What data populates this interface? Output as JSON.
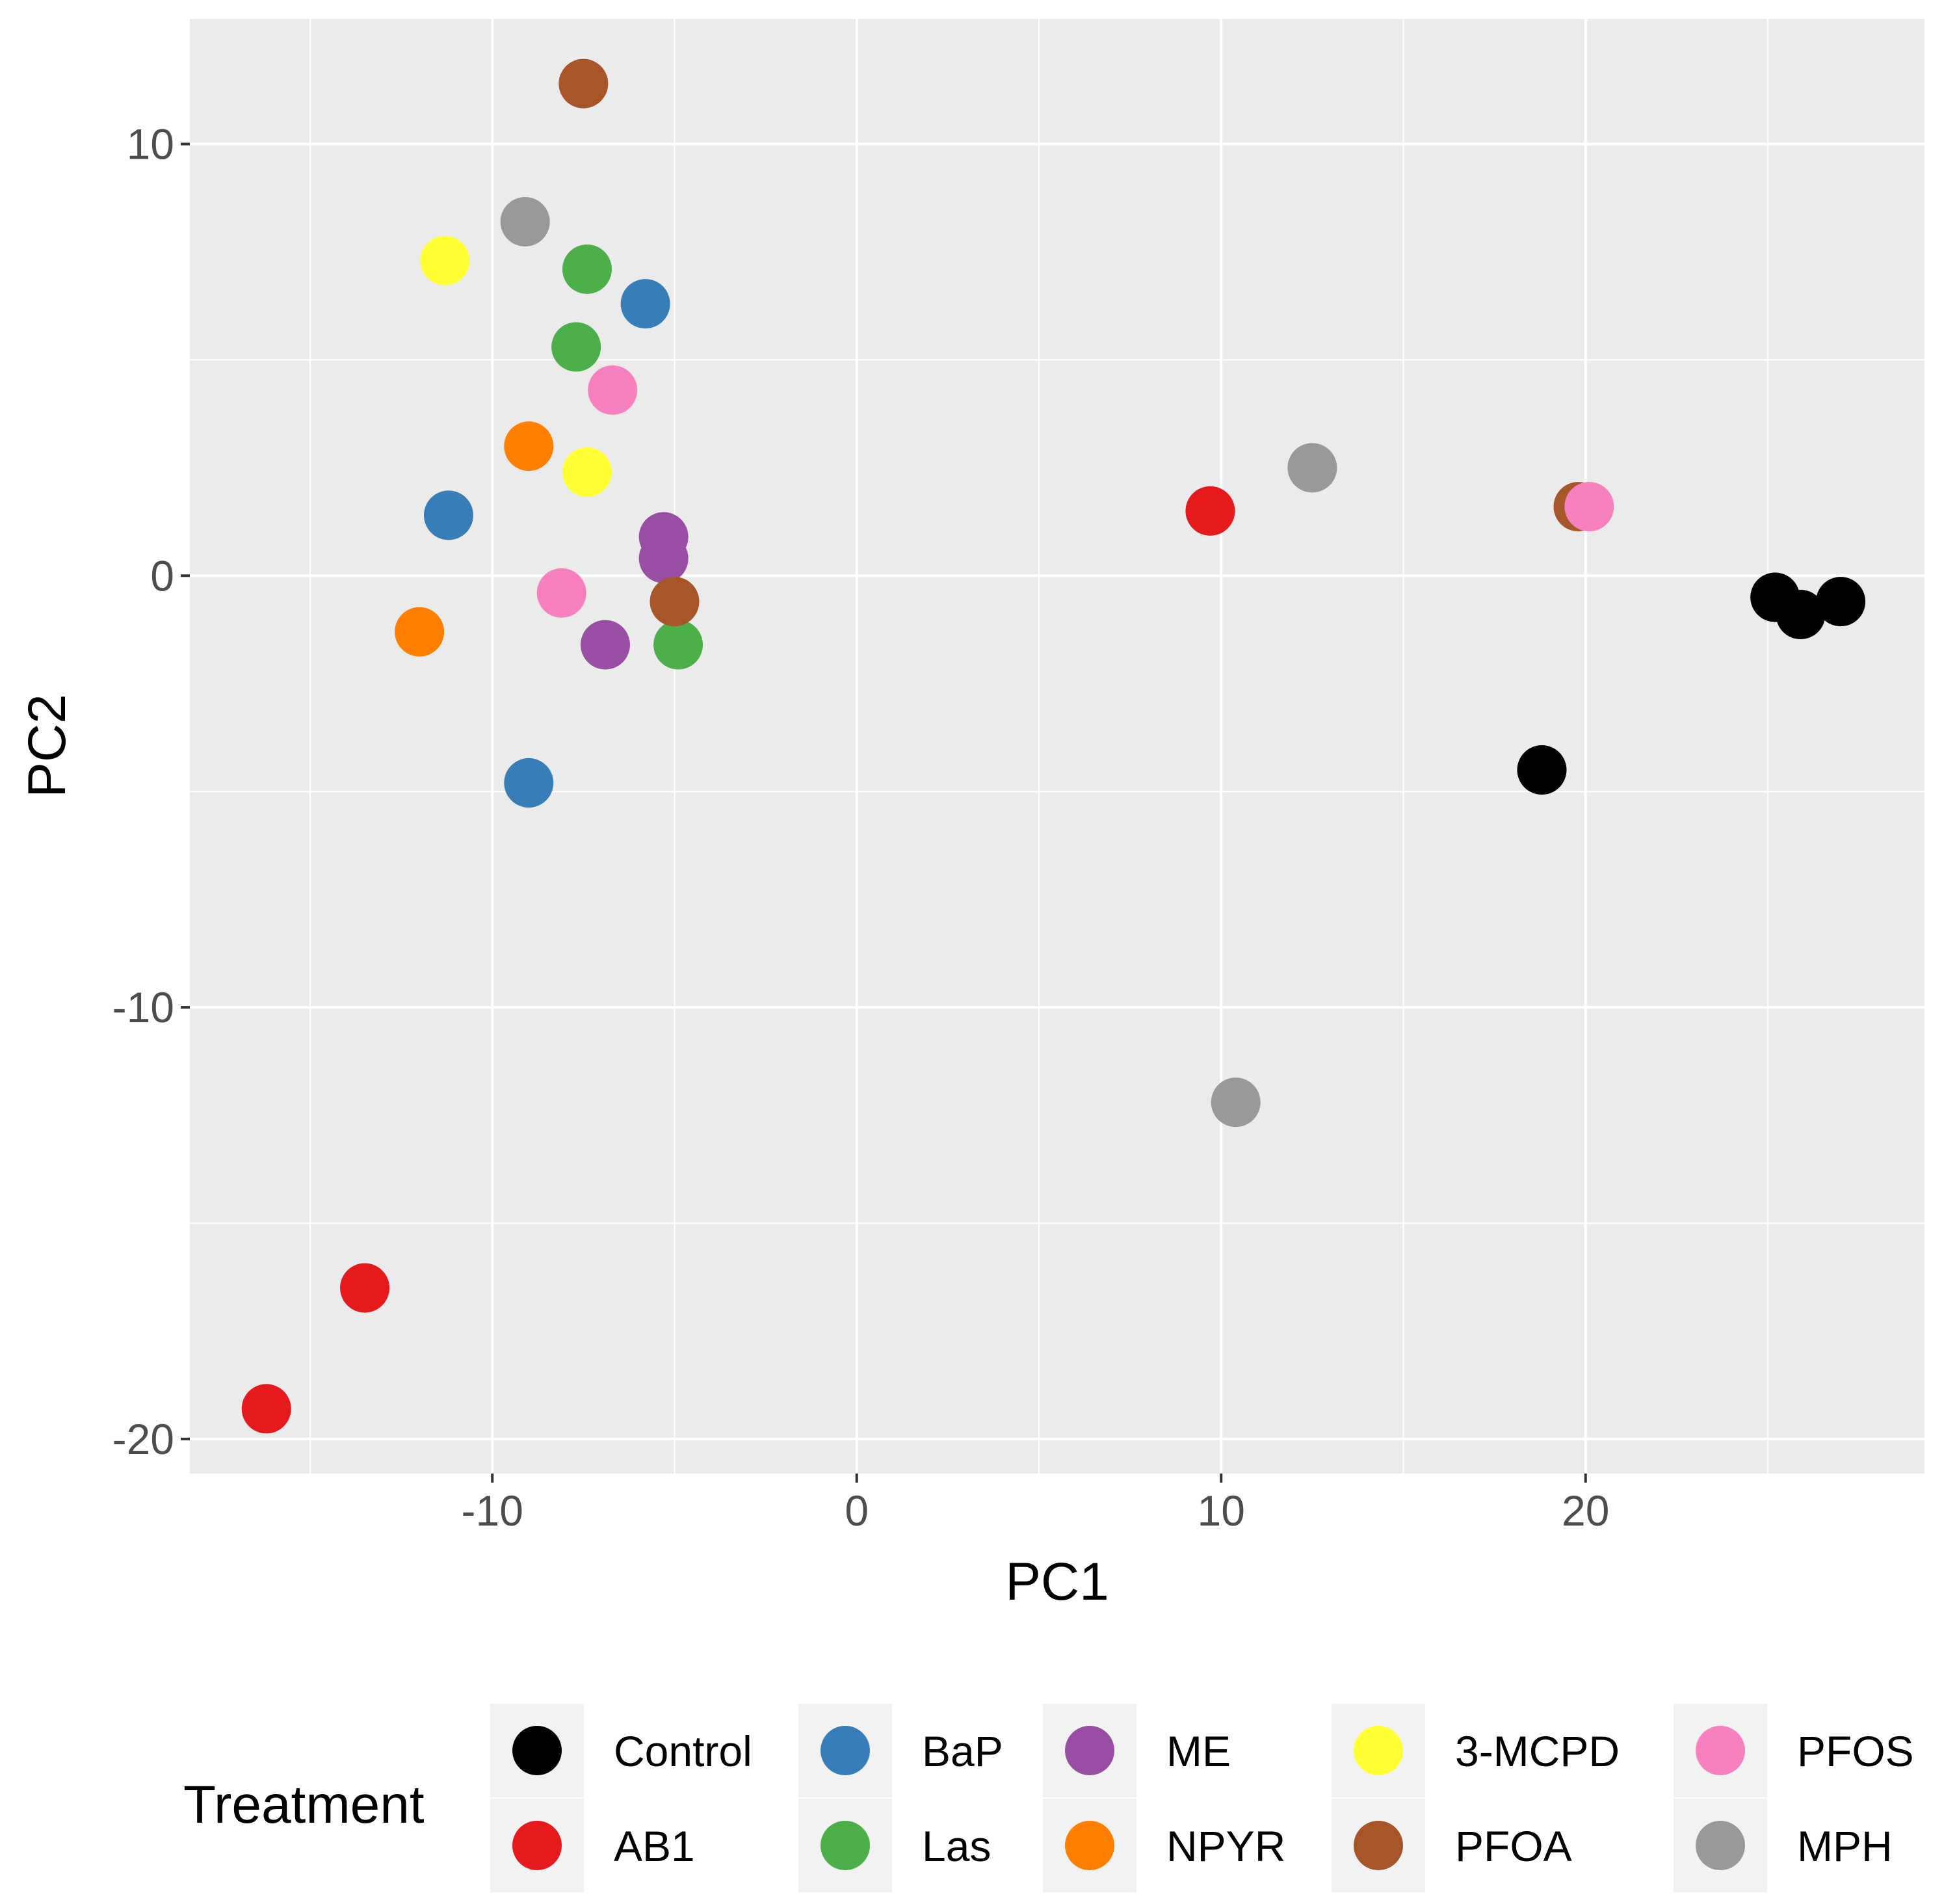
{
  "chart_data": {
    "type": "scatter",
    "title": "",
    "xlabel": "PC1",
    "ylabel": "PC2",
    "xlim": [
      -18.3,
      29.3
    ],
    "ylim": [
      -20.8,
      12.9
    ],
    "grid": true,
    "x_ticks": [
      -10,
      0,
      10,
      20
    ],
    "y_ticks": [
      10,
      0,
      -10,
      -20
    ],
    "x_tick_labels": [
      "-10",
      "0",
      "10",
      "20"
    ],
    "y_tick_labels": [
      "10",
      "0",
      "-10",
      "-20"
    ],
    "legend": {
      "title": "Treatment",
      "placement": "bottom",
      "entries": [
        {
          "label": "Control",
          "color": "#000000"
        },
        {
          "label": "AB1",
          "color": "#e41a1c"
        },
        {
          "label": "BaP",
          "color": "#377eb8"
        },
        {
          "label": "Las",
          "color": "#4daf4a"
        },
        {
          "label": "ME",
          "color": "#984ea3"
        },
        {
          "label": "NPYR",
          "color": "#ff7f00"
        },
        {
          "label": "3-MCPD",
          "color": "#ffff33"
        },
        {
          "label": "PFOA",
          "color": "#a65628"
        },
        {
          "label": "PFOS",
          "color": "#f781bf"
        },
        {
          "label": "MPH",
          "color": "#999999"
        }
      ]
    },
    "series": [
      {
        "name": "Control",
        "color": "#000000",
        "points": [
          [
            18.8,
            -4.5
          ],
          [
            25.2,
            -0.5
          ],
          [
            25.9,
            -0.9
          ],
          [
            27.0,
            -0.6
          ]
        ]
      },
      {
        "name": "AB1",
        "color": "#e41a1c",
        "points": [
          [
            9.7,
            1.5
          ],
          [
            -13.5,
            -16.5
          ],
          [
            -16.2,
            -19.3
          ]
        ]
      },
      {
        "name": "BaP",
        "color": "#377eb8",
        "points": [
          [
            -5.8,
            6.3
          ],
          [
            -11.2,
            1.4
          ],
          [
            -9.0,
            -4.8
          ]
        ]
      },
      {
        "name": "Las",
        "color": "#4daf4a",
        "points": [
          [
            -7.4,
            7.1
          ],
          [
            -7.7,
            5.3
          ],
          [
            -4.9,
            -1.6
          ]
        ]
      },
      {
        "name": "ME",
        "color": "#984ea3",
        "points": [
          [
            -5.3,
            0.9
          ],
          [
            -5.3,
            0.4
          ],
          [
            -6.9,
            -1.6
          ]
        ]
      },
      {
        "name": "NPYR",
        "color": "#ff7f00",
        "points": [
          [
            -9.0,
            3.0
          ],
          [
            -12.0,
            -1.3
          ]
        ]
      },
      {
        "name": "3-MCPD",
        "color": "#ffff33",
        "points": [
          [
            -11.3,
            7.3
          ],
          [
            -7.4,
            2.4
          ]
        ]
      },
      {
        "name": "PFOA",
        "color": "#a65628",
        "points": [
          [
            -7.5,
            11.4
          ],
          [
            -5.0,
            -0.6
          ],
          [
            19.8,
            1.6
          ]
        ]
      },
      {
        "name": "PFOS",
        "color": "#f781bf",
        "points": [
          [
            -6.7,
            4.3
          ],
          [
            -8.1,
            -0.4
          ],
          [
            20.1,
            1.6
          ]
        ]
      },
      {
        "name": "MPH",
        "color": "#999999",
        "points": [
          [
            -9.1,
            8.2
          ],
          [
            12.5,
            2.5
          ],
          [
            10.4,
            -12.2
          ]
        ]
      }
    ]
  }
}
